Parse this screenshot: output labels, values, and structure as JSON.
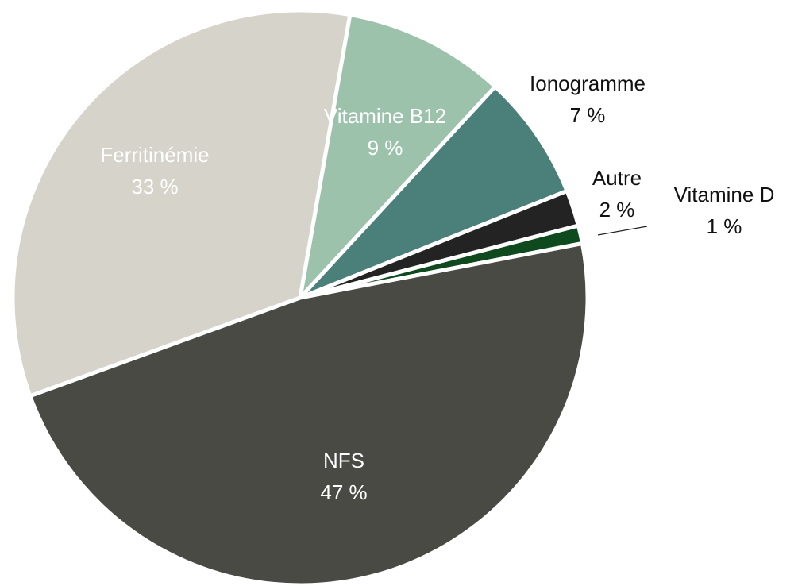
{
  "chart_data": {
    "type": "pie",
    "categories": [
      "Ferritinémie",
      "Vitamine B12",
      "Ionogramme",
      "Autre",
      "Vitamine D",
      "NFS"
    ],
    "values": [
      33,
      9,
      7,
      2,
      1,
      47
    ],
    "value_labels": [
      "33 %",
      "9 %",
      "7 %",
      "2 %",
      "1 %",
      "47 %"
    ],
    "colors": [
      "#d6d3ca",
      "#9dc2ac",
      "#4b7f79",
      "#232323",
      "#0f4a1f",
      "#4a4a45"
    ]
  }
}
